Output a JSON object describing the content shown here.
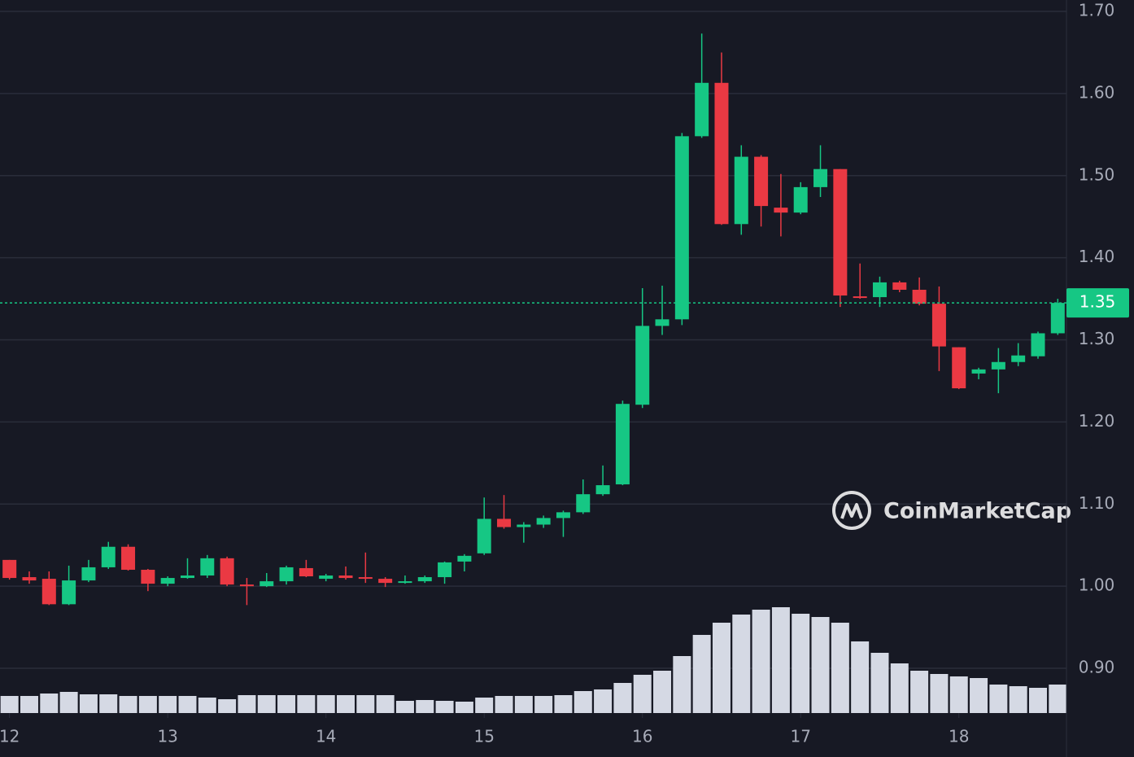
{
  "chart_data": {
    "type": "candlestick",
    "x": [
      12,
      12.125,
      12.25,
      12.375,
      12.5,
      12.625,
      12.75,
      12.875,
      13,
      13.125,
      13.25,
      13.375,
      13.5,
      13.625,
      13.75,
      13.875,
      14,
      14.125,
      14.25,
      14.375,
      14.5,
      14.625,
      14.75,
      14.875,
      15,
      15.125,
      15.25,
      15.375,
      15.5,
      15.625,
      15.75,
      15.875,
      16,
      16.125,
      16.25,
      16.375,
      16.5,
      16.625,
      16.75,
      16.875,
      17,
      17.125,
      17.25,
      17.375,
      17.5,
      17.625,
      17.75,
      17.875,
      18,
      18.125,
      18.25,
      18.375,
      18.5,
      18.625
    ],
    "open": [
      1.032,
      1.011,
      1.009,
      0.978,
      1.007,
      1.023,
      1.048,
      1.02,
      1.003,
      1.01,
      1.013,
      1.034,
      1.002,
      1.0,
      1.006,
      1.022,
      1.009,
      1.013,
      1.011,
      1.009,
      1.004,
      1.006,
      1.011,
      1.03,
      1.04,
      1.082,
      1.072,
      1.075,
      1.083,
      1.09,
      1.112,
      1.124,
      1.221,
      1.317,
      1.325,
      1.548,
      1.613,
      1.441,
      1.523,
      1.461,
      1.455,
      1.486,
      1.508,
      1.353,
      1.352,
      1.37,
      1.361,
      1.344,
      1.291,
      1.259,
      1.264,
      1.273,
      1.28,
      1.308
    ],
    "high": [
      1.032,
      1.018,
      1.018,
      1.025,
      1.032,
      1.054,
      1.051,
      1.021,
      1.012,
      1.034,
      1.038,
      1.036,
      1.01,
      1.016,
      1.025,
      1.032,
      1.015,
      1.024,
      1.041,
      1.011,
      1.013,
      1.013,
      1.03,
      1.039,
      1.108,
      1.111,
      1.078,
      1.086,
      1.092,
      1.13,
      1.147,
      1.226,
      1.363,
      1.366,
      1.552,
      1.673,
      1.65,
      1.537,
      1.525,
      1.502,
      1.492,
      1.537,
      1.508,
      1.393,
      1.377,
      1.372,
      1.376,
      1.365,
      1.291,
      1.266,
      1.29,
      1.296,
      1.31,
      1.35
    ],
    "low": [
      1.008,
      1.003,
      0.977,
      0.977,
      1.005,
      1.021,
      1.019,
      0.994,
      1.0,
      1.009,
      1.01,
      1.0,
      0.977,
      0.999,
      1.002,
      1.011,
      1.006,
      1.008,
      1.004,
      0.999,
      1.003,
      1.004,
      1.003,
      1.018,
      1.038,
      1.07,
      1.053,
      1.071,
      1.06,
      1.088,
      1.11,
      1.123,
      1.217,
      1.306,
      1.318,
      1.546,
      1.44,
      1.428,
      1.438,
      1.426,
      1.453,
      1.474,
      1.34,
      1.35,
      1.34,
      1.358,
      1.342,
      1.262,
      1.24,
      1.252,
      1.235,
      1.268,
      1.277,
      1.306
    ],
    "close": [
      1.01,
      1.007,
      0.978,
      1.007,
      1.023,
      1.048,
      1.02,
      1.003,
      1.01,
      1.013,
      1.034,
      1.002,
      1.0,
      1.006,
      1.023,
      1.012,
      1.013,
      1.01,
      1.009,
      1.004,
      1.006,
      1.011,
      1.029,
      1.037,
      1.082,
      1.072,
      1.075,
      1.083,
      1.09,
      1.112,
      1.123,
      1.222,
      1.317,
      1.325,
      1.548,
      1.613,
      1.441,
      1.523,
      1.463,
      1.455,
      1.486,
      1.508,
      1.354,
      1.351,
      1.37,
      1.361,
      1.344,
      1.292,
      1.241,
      1.264,
      1.273,
      1.281,
      1.308,
      1.345
    ],
    "volume": [
      21,
      21,
      24,
      26,
      23,
      23,
      21,
      21,
      21,
      21,
      19,
      17,
      22,
      22,
      22,
      22,
      22,
      22,
      22,
      22,
      15,
      16,
      15,
      14,
      19,
      21,
      21,
      21,
      22,
      27,
      29,
      37,
      47,
      52,
      70,
      96,
      111,
      121,
      127,
      130,
      122,
      118,
      111,
      88,
      74,
      61,
      52,
      48,
      45,
      43,
      35,
      33,
      31,
      35
    ],
    "up_color": "#16c784",
    "down_color": "#ea3943",
    "volume_color": "#d5d9e4",
    "current_price": {
      "value": 1.345,
      "label": "1.35"
    },
    "xlim": [
      11.94,
      18.68
    ],
    "xticks": [
      12,
      13,
      14,
      15,
      16,
      17,
      18
    ],
    "ylim": [
      0.8455,
      1.7139
    ],
    "yticks": [
      {
        "value": 0.9,
        "label": "0.90"
      },
      {
        "value": 1.0,
        "label": "1.00"
      },
      {
        "value": 1.1,
        "label": "1.10"
      },
      {
        "value": 1.2,
        "label": "1.20"
      },
      {
        "value": 1.3,
        "label": "1.30"
      },
      {
        "value": 1.4,
        "label": "1.40"
      },
      {
        "value": 1.5,
        "label": "1.50"
      },
      {
        "value": 1.6,
        "label": "1.60"
      },
      {
        "value": 1.7,
        "label": "1.70"
      }
    ],
    "grid": true,
    "watermark": "CoinMarketCap"
  }
}
